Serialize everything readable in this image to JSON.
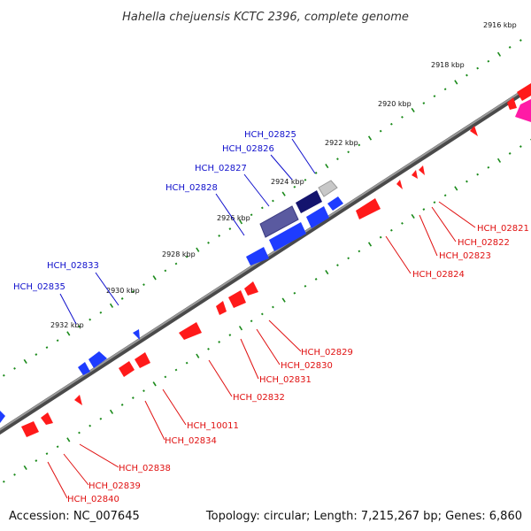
{
  "title": "Hahella chejuensis KCTC 2396, complete genome",
  "footer": {
    "accession": "Accession: NC_007645",
    "summary": "Topology: circular; Length: 7,215,267 bp; Genes: 6,860"
  },
  "ticks": [
    "2916 kbp",
    "2918 kbp",
    "2920 kbp",
    "2922 kbp",
    "2924 kbp",
    "2926 kbp",
    "2928 kbp",
    "2930 kbp",
    "2932 kbp"
  ],
  "colors": {
    "plus_label": "#1010cc",
    "minus_label": "#e01010",
    "backbone": "#777777"
  },
  "plus_labels": [
    "HCH_02825",
    "HCH_02826",
    "HCH_02827",
    "HCH_02828",
    "HCH_02833",
    "HCH_02835"
  ],
  "minus_labels": [
    "HCH_02821",
    "HCH_02822",
    "HCH_02823",
    "HCH_02824",
    "HCH_02829",
    "HCH_02830",
    "HCH_02831",
    "HCH_02832",
    "HCH_10011",
    "HCH_02834",
    "HCH_02838",
    "HCH_02839",
    "HCH_02840"
  ]
}
